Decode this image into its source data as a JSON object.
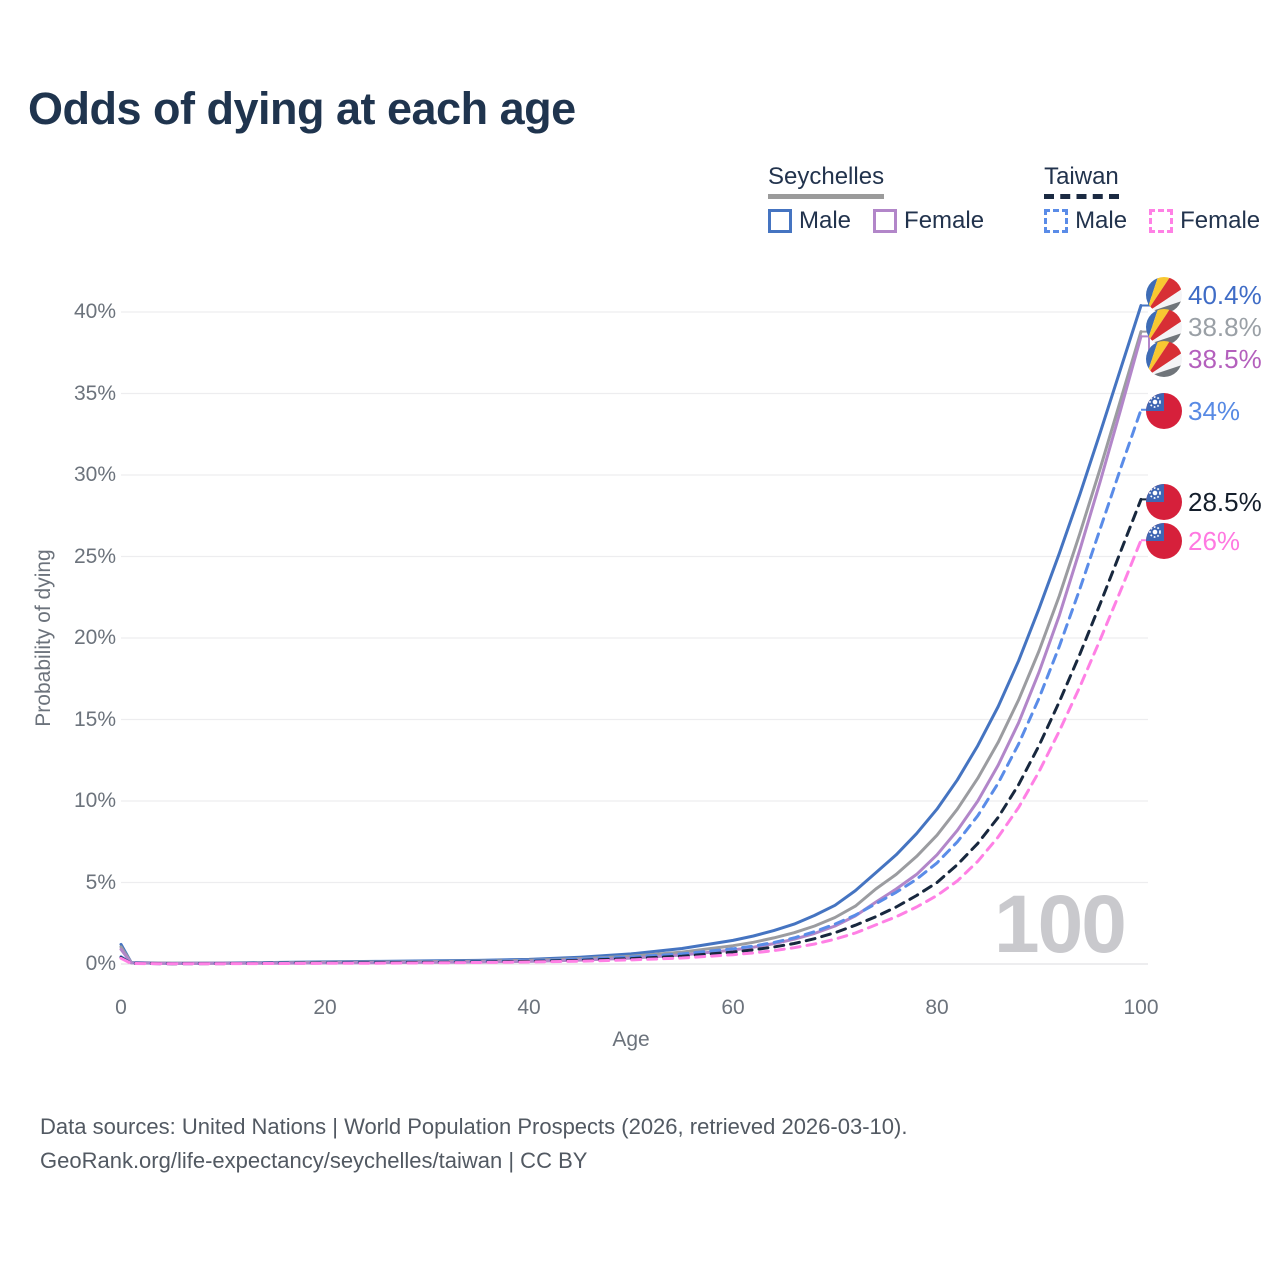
{
  "title": "Odds of dying at each age",
  "watermark": "100",
  "legend": {
    "groups": [
      {
        "label": "Seychelles",
        "line_style": "solid",
        "underline_color": "#9b9b9b",
        "items": [
          {
            "label": "Male",
            "color": "#4574c1"
          },
          {
            "label": "Female",
            "color": "#b286c9"
          }
        ]
      },
      {
        "label": "Taiwan",
        "line_style": "dashed",
        "underline_color": "#1b2a42",
        "items": [
          {
            "label": "Male",
            "color": "#5a8ce8"
          },
          {
            "label": "Female",
            "color": "#ff80e5"
          }
        ]
      }
    ]
  },
  "footer": {
    "line1": "Data sources: United Nations | World Population Prospects (2026, retrieved 2026-03-10).",
    "line2": "GeoRank.org/life-expectancy/seychelles/taiwan | CC BY"
  },
  "chart_data": {
    "type": "line",
    "title": "Odds of dying at each age",
    "xlabel": "Age",
    "ylabel": "Probability of dying",
    "xlim": [
      0,
      100
    ],
    "ylim": [
      0,
      42
    ],
    "grid": true,
    "legend_position": "top-right",
    "x_ticks": [
      {
        "value": 0,
        "label": "0"
      },
      {
        "value": 20,
        "label": "20"
      },
      {
        "value": 40,
        "label": "40"
      },
      {
        "value": 60,
        "label": "60"
      },
      {
        "value": 80,
        "label": "80"
      },
      {
        "value": 100,
        "label": "100"
      }
    ],
    "y_ticks": [
      {
        "value": 0,
        "label": "0%"
      },
      {
        "value": 5,
        "label": "5%"
      },
      {
        "value": 10,
        "label": "10%"
      },
      {
        "value": 15,
        "label": "15%"
      },
      {
        "value": 20,
        "label": "20%"
      },
      {
        "value": 25,
        "label": "25%"
      },
      {
        "value": 30,
        "label": "30%"
      },
      {
        "value": 35,
        "label": "35%"
      },
      {
        "value": 40,
        "label": "40%"
      }
    ],
    "x": [
      0,
      1,
      5,
      10,
      15,
      20,
      25,
      30,
      35,
      40,
      45,
      50,
      55,
      60,
      62,
      64,
      66,
      68,
      70,
      72,
      74,
      76,
      78,
      80,
      82,
      84,
      86,
      88,
      90,
      92,
      94,
      96,
      98,
      100
    ],
    "series": [
      {
        "name": "Seychelles Male",
        "country": "Seychelles",
        "sex": "male",
        "style": "solid",
        "color": "#4574c1",
        "label_color": "#3f6cc6",
        "end_label": "40.4%",
        "values": [
          1.2,
          0.09,
          0.05,
          0.06,
          0.09,
          0.13,
          0.16,
          0.19,
          0.22,
          0.28,
          0.42,
          0.62,
          0.95,
          1.45,
          1.72,
          2.05,
          2.45,
          2.98,
          3.6,
          4.5,
          5.6,
          6.7,
          8.0,
          9.5,
          11.3,
          13.4,
          15.8,
          18.6,
          21.8,
          25.2,
          28.8,
          32.6,
          36.5,
          40.4
        ]
      },
      {
        "name": "Seychelles",
        "country": "Seychelles",
        "sex": "both",
        "style": "solid",
        "color": "#9b9ca0",
        "label_color": "#9aa0a6",
        "end_label": "38.8%",
        "values": [
          1.05,
          0.08,
          0.04,
          0.05,
          0.07,
          0.1,
          0.12,
          0.15,
          0.18,
          0.23,
          0.33,
          0.48,
          0.73,
          1.12,
          1.33,
          1.6,
          1.92,
          2.33,
          2.85,
          3.55,
          4.6,
          5.5,
          6.6,
          7.9,
          9.5,
          11.4,
          13.6,
          16.2,
          19.2,
          22.6,
          26.4,
          30.4,
          34.6,
          38.8
        ]
      },
      {
        "name": "Seychelles Female",
        "country": "Seychelles",
        "sex": "female",
        "style": "solid",
        "color": "#b286c9",
        "label_color": "#b460bd",
        "end_label": "38.5%",
        "values": [
          0.9,
          0.07,
          0.03,
          0.04,
          0.05,
          0.07,
          0.08,
          0.1,
          0.12,
          0.16,
          0.24,
          0.36,
          0.55,
          0.86,
          1.03,
          1.25,
          1.52,
          1.88,
          2.33,
          2.95,
          3.8,
          4.6,
          5.5,
          6.7,
          8.2,
          10.0,
          12.2,
          14.8,
          17.9,
          21.4,
          25.4,
          29.6,
          34.0,
          38.5
        ]
      },
      {
        "name": "Taiwan Male",
        "country": "Taiwan",
        "sex": "male",
        "style": "dashed",
        "color": "#5a8ce8",
        "label_color": "#588ae4",
        "end_label": "34%",
        "values": [
          0.45,
          0.04,
          0.02,
          0.03,
          0.05,
          0.08,
          0.1,
          0.13,
          0.16,
          0.21,
          0.3,
          0.43,
          0.62,
          0.93,
          1.1,
          1.32,
          1.6,
          1.98,
          2.45,
          3.0,
          3.7,
          4.4,
          5.2,
          6.2,
          7.5,
          9.1,
          11.1,
          13.5,
          16.3,
          19.5,
          23.0,
          26.7,
          30.4,
          34.0
        ]
      },
      {
        "name": "Taiwan",
        "country": "Taiwan",
        "sex": "both",
        "style": "dashed",
        "color": "#18283e",
        "label_color": "#141e2b",
        "end_label": "28.5%",
        "values": [
          0.4,
          0.035,
          0.018,
          0.025,
          0.04,
          0.06,
          0.08,
          0.1,
          0.12,
          0.16,
          0.23,
          0.33,
          0.48,
          0.73,
          0.87,
          1.04,
          1.26,
          1.55,
          1.92,
          2.38,
          2.9,
          3.5,
          4.2,
          5.0,
          6.1,
          7.4,
          9.0,
          11.0,
          13.4,
          16.1,
          19.0,
          22.1,
          25.3,
          28.5
        ]
      },
      {
        "name": "Taiwan Female",
        "country": "Taiwan",
        "sex": "female",
        "style": "dashed",
        "color": "#ff80e5",
        "label_color": "#ff79e1",
        "end_label": "26%",
        "values": [
          0.35,
          0.03,
          0.015,
          0.02,
          0.03,
          0.04,
          0.05,
          0.07,
          0.09,
          0.12,
          0.17,
          0.25,
          0.37,
          0.57,
          0.68,
          0.82,
          1.0,
          1.23,
          1.52,
          1.9,
          2.4,
          2.9,
          3.5,
          4.2,
          5.1,
          6.3,
          7.8,
          9.6,
          11.8,
          14.3,
          17.0,
          19.9,
          22.9,
          26.0
        ]
      }
    ]
  }
}
